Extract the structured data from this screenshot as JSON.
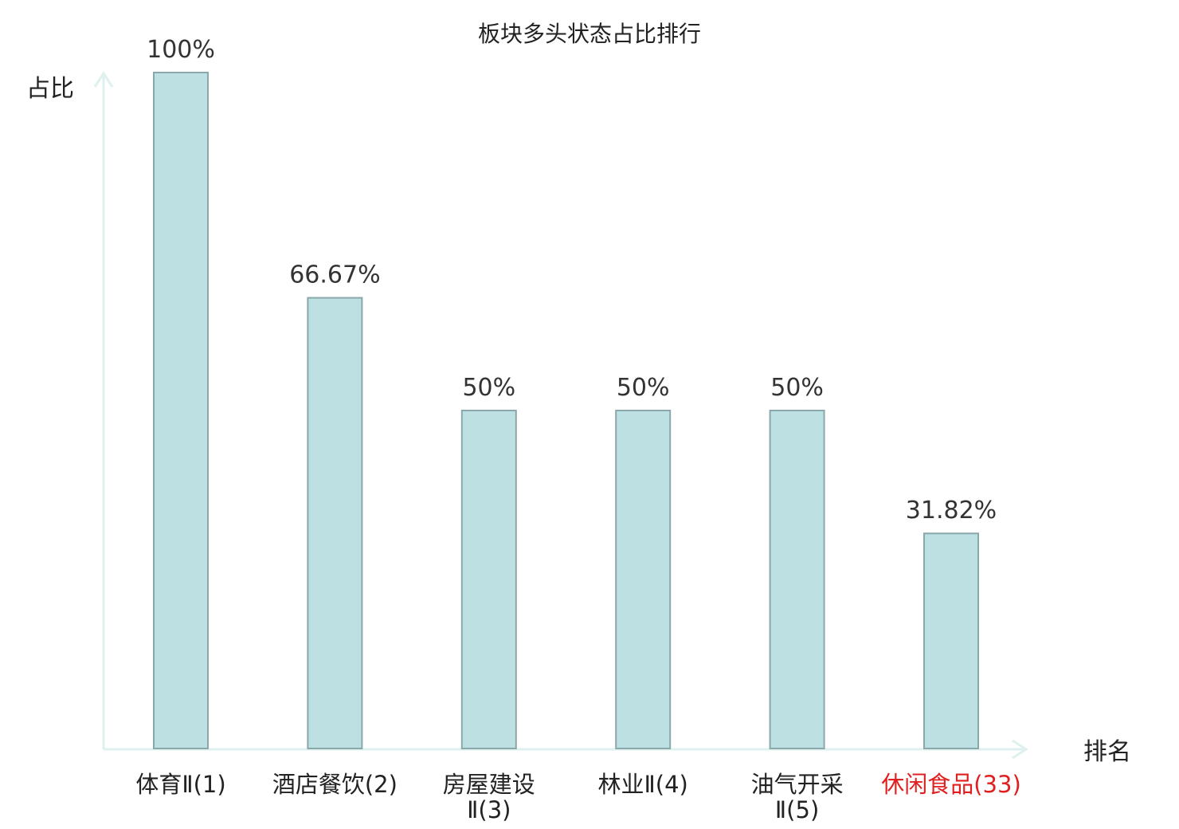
{
  "chart_data": {
    "type": "bar",
    "title": "板块多头状态占比排行",
    "ylabel": "占比",
    "xlabel": "排名",
    "categories": [
      {
        "lines": [
          "体育Ⅱ(1)"
        ],
        "highlight": false
      },
      {
        "lines": [
          "酒店餐饮(2)"
        ],
        "highlight": false
      },
      {
        "lines": [
          "房屋建设",
          "Ⅱ(3)"
        ],
        "highlight": false
      },
      {
        "lines": [
          "林业Ⅱ(4)"
        ],
        "highlight": false
      },
      {
        "lines": [
          "油气开采",
          "Ⅱ(5)"
        ],
        "highlight": false
      },
      {
        "lines": [
          "休闲食品(33)"
        ],
        "highlight": true
      }
    ],
    "values": [
      100,
      66.67,
      50,
      50,
      50,
      31.82
    ],
    "value_labels": [
      "100%",
      "66.67%",
      "50%",
      "50%",
      "50%",
      "31.82%"
    ],
    "ylim": [
      0,
      100
    ],
    "grid": false,
    "colors": {
      "bar_fill": "#bde0e3",
      "bar_stroke": "#8aa8ac",
      "axis": "#dff1ee",
      "text": "#222222",
      "value_text": "#333333",
      "highlight": "#e02020"
    }
  }
}
